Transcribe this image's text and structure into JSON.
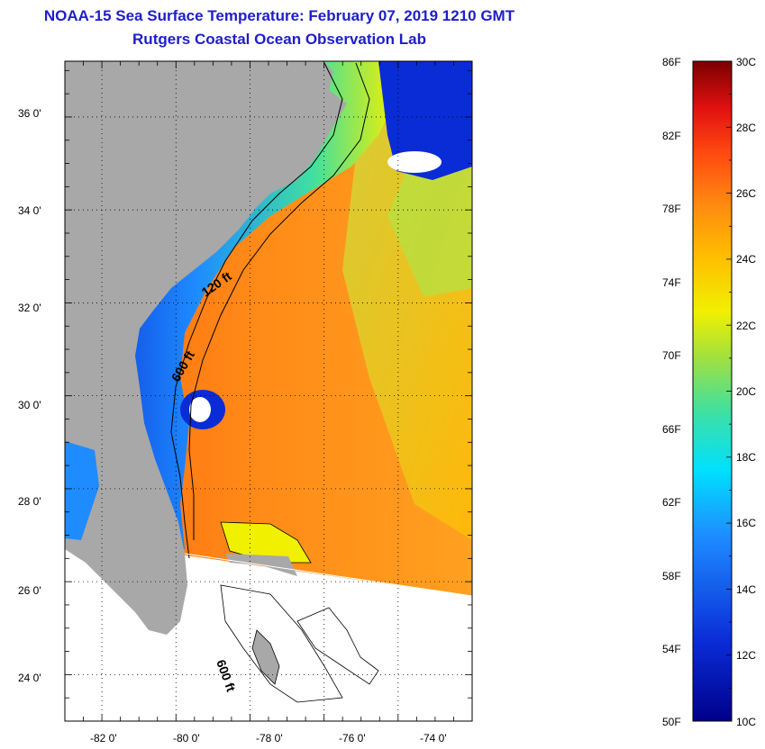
{
  "title": {
    "line1": "NOAA-15 Sea Surface Temperature:  February 07, 2019 1210 GMT",
    "line2": "Rutgers Coastal Ocean Observation Lab"
  },
  "axes": {
    "longitude_labels": [
      "-82 0'",
      "-80 0'",
      "-78 0'",
      "-76 0'",
      "-74 0'"
    ],
    "latitude_labels": [
      "36 0'",
      "34 0'",
      "32 0'",
      "30 0'",
      "28 0'",
      "26 0'",
      "24 0'"
    ],
    "lon_range": [
      -83.0,
      -72.0
    ],
    "lat_range": [
      23.0,
      37.2
    ]
  },
  "contours": {
    "label_120": "120 ft",
    "label_600": "600 ft",
    "label_600_south": "600 ft"
  },
  "colorbar": {
    "fahrenheit_labels": [
      "86F",
      "82F",
      "78F",
      "74F",
      "70F",
      "66F",
      "62F",
      "58F",
      "54F",
      "50F"
    ],
    "celsius_labels": [
      "30C",
      "28C",
      "26C",
      "24C",
      "22C",
      "20C",
      "18C",
      "16C",
      "14C",
      "12C",
      "10C"
    ],
    "min_c": 10,
    "max_c": 30
  },
  "colors": {
    "land": "#a8a8a8",
    "title": "#1e1ec8",
    "ocean_cold": "#0a2cd6",
    "ocean_warm": "#f07018"
  }
}
